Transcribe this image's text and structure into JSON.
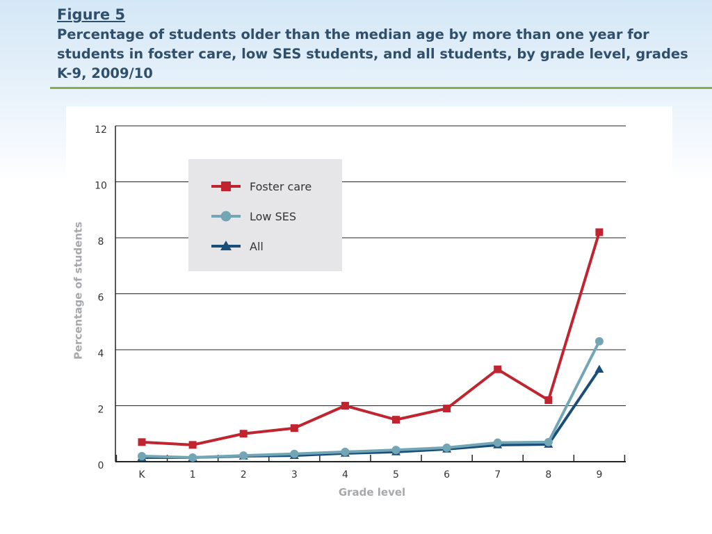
{
  "header": {
    "figure_label": "Figure 5",
    "title": "Percentage of students older than the median age by more than one year for students in foster care, low SES students, and all students, by grade level, grades K-9, 2009/10"
  },
  "colors": {
    "title_text": "#2f4f6b",
    "title_rule": "#86ad4a",
    "foster_care": "#c0242f",
    "low_ses": "#72a6b5",
    "all": "#1a4e7a",
    "legend_background": "#e6e6e8",
    "axis_title": "#a7a9ac"
  },
  "chart_data": {
    "type": "line",
    "title": "",
    "xlabel": "Grade level",
    "ylabel": "Percentage of students",
    "categories": [
      "K",
      "1",
      "2",
      "3",
      "4",
      "5",
      "6",
      "7",
      "8",
      "9"
    ],
    "ylim": [
      0,
      12
    ],
    "yticks": [
      0,
      2,
      4,
      6,
      8,
      10,
      12
    ],
    "grid": "horizontal",
    "legend_position": "top-left",
    "series": [
      {
        "name": "Foster care",
        "marker": "square",
        "color": "#c0242f",
        "values": [
          0.7,
          0.6,
          1.0,
          1.2,
          2.0,
          1.5,
          1.9,
          3.3,
          2.2,
          8.2
        ]
      },
      {
        "name": "Low SES",
        "marker": "circle",
        "color": "#72a6b5",
        "values": [
          0.2,
          0.15,
          0.22,
          0.28,
          0.35,
          0.42,
          0.5,
          0.68,
          0.7,
          4.3
        ]
      },
      {
        "name": "All",
        "marker": "triangle",
        "color": "#1a4e7a",
        "values": [
          0.15,
          0.15,
          0.2,
          0.22,
          0.3,
          0.35,
          0.45,
          0.6,
          0.62,
          3.3
        ]
      }
    ]
  }
}
